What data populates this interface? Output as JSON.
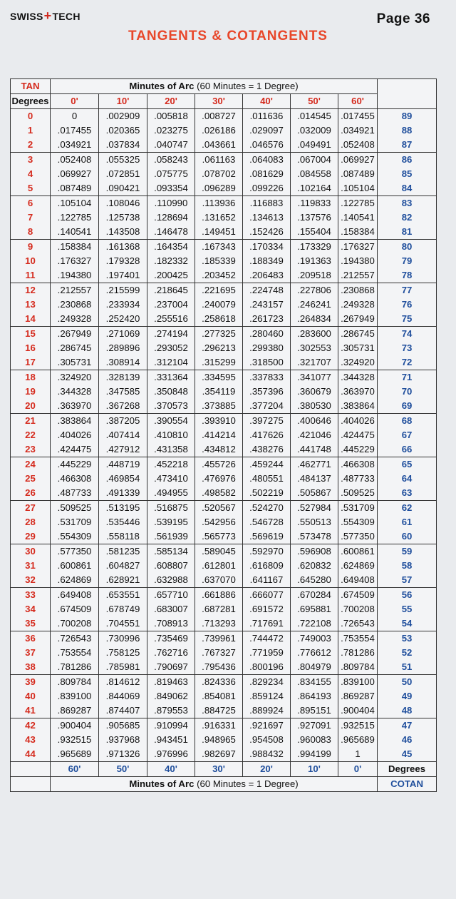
{
  "brand": {
    "left": "SWISS",
    "plus": "+",
    "right": "TECH"
  },
  "page_label": "Page 36",
  "title": "TANGENTS & COTANGENTS",
  "header": {
    "tan_label": "TAN",
    "degrees_label": "Degrees",
    "minutes_bold": "Minutes of Arc",
    "minutes_note": " (60 Minutes = 1 Degree)",
    "top_minutes": [
      "0'",
      "10'",
      "20'",
      "30'",
      "40'",
      "50'",
      "60'"
    ]
  },
  "footer": {
    "bottom_minutes": [
      "60'",
      "50'",
      "40'",
      "30'",
      "20'",
      "10'",
      "0'"
    ],
    "degrees_label": "Degrees",
    "cotan_label": "COTAN",
    "minutes_bold": "Minutes of Arc",
    "minutes_note": " (60 Minutes = 1 Degree)"
  },
  "rows": [
    {
      "deg": "0",
      "vals": [
        "0",
        ".002909",
        ".005818",
        ".008727",
        ".011636",
        ".014545",
        ".017455"
      ],
      "cdeg": "89"
    },
    {
      "deg": "1",
      "vals": [
        ".017455",
        ".020365",
        ".023275",
        ".026186",
        ".029097",
        ".032009",
        ".034921"
      ],
      "cdeg": "88"
    },
    {
      "deg": "2",
      "vals": [
        ".034921",
        ".037834",
        ".040747",
        ".043661",
        ".046576",
        ".049491",
        ".052408"
      ],
      "cdeg": "87"
    },
    {
      "deg": "3",
      "vals": [
        ".052408",
        ".055325",
        ".058243",
        ".061163",
        ".064083",
        ".067004",
        ".069927"
      ],
      "cdeg": "86"
    },
    {
      "deg": "4",
      "vals": [
        ".069927",
        ".072851",
        ".075775",
        ".078702",
        ".081629",
        ".084558",
        ".087489"
      ],
      "cdeg": "85"
    },
    {
      "deg": "5",
      "vals": [
        ".087489",
        ".090421",
        ".093354",
        ".096289",
        ".099226",
        ".102164",
        ".105104"
      ],
      "cdeg": "84"
    },
    {
      "deg": "6",
      "vals": [
        ".105104",
        ".108046",
        ".110990",
        ".113936",
        ".116883",
        ".119833",
        ".122785"
      ],
      "cdeg": "83"
    },
    {
      "deg": "7",
      "vals": [
        ".122785",
        ".125738",
        ".128694",
        ".131652",
        ".134613",
        ".137576",
        ".140541"
      ],
      "cdeg": "82"
    },
    {
      "deg": "8",
      "vals": [
        ".140541",
        ".143508",
        ".146478",
        ".149451",
        ".152426",
        ".155404",
        ".158384"
      ],
      "cdeg": "81"
    },
    {
      "deg": "9",
      "vals": [
        ".158384",
        ".161368",
        ".164354",
        ".167343",
        ".170334",
        ".173329",
        ".176327"
      ],
      "cdeg": "80"
    },
    {
      "deg": "10",
      "vals": [
        ".176327",
        ".179328",
        ".182332",
        ".185339",
        ".188349",
        ".191363",
        ".194380"
      ],
      "cdeg": "79"
    },
    {
      "deg": "11",
      "vals": [
        ".194380",
        ".197401",
        ".200425",
        ".203452",
        ".206483",
        ".209518",
        ".212557"
      ],
      "cdeg": "78"
    },
    {
      "deg": "12",
      "vals": [
        ".212557",
        ".215599",
        ".218645",
        ".221695",
        ".224748",
        ".227806",
        ".230868"
      ],
      "cdeg": "77"
    },
    {
      "deg": "13",
      "vals": [
        ".230868",
        ".233934",
        ".237004",
        ".240079",
        ".243157",
        ".246241",
        ".249328"
      ],
      "cdeg": "76"
    },
    {
      "deg": "14",
      "vals": [
        ".249328",
        ".252420",
        ".255516",
        ".258618",
        ".261723",
        ".264834",
        ".267949"
      ],
      "cdeg": "75"
    },
    {
      "deg": "15",
      "vals": [
        ".267949",
        ".271069",
        ".274194",
        ".277325",
        ".280460",
        ".283600",
        ".286745"
      ],
      "cdeg": "74"
    },
    {
      "deg": "16",
      "vals": [
        ".286745",
        ".289896",
        ".293052",
        ".296213",
        ".299380",
        ".302553",
        ".305731"
      ],
      "cdeg": "73"
    },
    {
      "deg": "17",
      "vals": [
        ".305731",
        ".308914",
        ".312104",
        ".315299",
        ".318500",
        ".321707",
        ".324920"
      ],
      "cdeg": "72"
    },
    {
      "deg": "18",
      "vals": [
        ".324920",
        ".328139",
        ".331364",
        ".334595",
        ".337833",
        ".341077",
        ".344328"
      ],
      "cdeg": "71"
    },
    {
      "deg": "19",
      "vals": [
        ".344328",
        ".347585",
        ".350848",
        ".354119",
        ".357396",
        ".360679",
        ".363970"
      ],
      "cdeg": "70"
    },
    {
      "deg": "20",
      "vals": [
        ".363970",
        ".367268",
        ".370573",
        ".373885",
        ".377204",
        ".380530",
        ".383864"
      ],
      "cdeg": "69"
    },
    {
      "deg": "21",
      "vals": [
        ".383864",
        ".387205",
        ".390554",
        ".393910",
        ".397275",
        ".400646",
        ".404026"
      ],
      "cdeg": "68"
    },
    {
      "deg": "22",
      "vals": [
        ".404026",
        ".407414",
        ".410810",
        ".414214",
        ".417626",
        ".421046",
        ".424475"
      ],
      "cdeg": "67"
    },
    {
      "deg": "23",
      "vals": [
        ".424475",
        ".427912",
        ".431358",
        ".434812",
        ".438276",
        ".441748",
        ".445229"
      ],
      "cdeg": "66"
    },
    {
      "deg": "24",
      "vals": [
        ".445229",
        ".448719",
        ".452218",
        ".455726",
        ".459244",
        ".462771",
        ".466308"
      ],
      "cdeg": "65"
    },
    {
      "deg": "25",
      "vals": [
        ".466308",
        ".469854",
        ".473410",
        ".476976",
        ".480551",
        ".484137",
        ".487733"
      ],
      "cdeg": "64"
    },
    {
      "deg": "26",
      "vals": [
        ".487733",
        ".491339",
        ".494955",
        ".498582",
        ".502219",
        ".505867",
        ".509525"
      ],
      "cdeg": "63"
    },
    {
      "deg": "27",
      "vals": [
        ".509525",
        ".513195",
        ".516875",
        ".520567",
        ".524270",
        ".527984",
        ".531709"
      ],
      "cdeg": "62"
    },
    {
      "deg": "28",
      "vals": [
        ".531709",
        ".535446",
        ".539195",
        ".542956",
        ".546728",
        ".550513",
        ".554309"
      ],
      "cdeg": "61"
    },
    {
      "deg": "29",
      "vals": [
        ".554309",
        ".558118",
        ".561939",
        ".565773",
        ".569619",
        ".573478",
        ".577350"
      ],
      "cdeg": "60"
    },
    {
      "deg": "30",
      "vals": [
        ".577350",
        ".581235",
        ".585134",
        ".589045",
        ".592970",
        ".596908",
        ".600861"
      ],
      "cdeg": "59"
    },
    {
      "deg": "31",
      "vals": [
        ".600861",
        ".604827",
        ".608807",
        ".612801",
        ".616809",
        ".620832",
        ".624869"
      ],
      "cdeg": "58"
    },
    {
      "deg": "32",
      "vals": [
        ".624869",
        ".628921",
        ".632988",
        ".637070",
        ".641167",
        ".645280",
        ".649408"
      ],
      "cdeg": "57"
    },
    {
      "deg": "33",
      "vals": [
        ".649408",
        ".653551",
        ".657710",
        ".661886",
        ".666077",
        ".670284",
        ".674509"
      ],
      "cdeg": "56"
    },
    {
      "deg": "34",
      "vals": [
        ".674509",
        ".678749",
        ".683007",
        ".687281",
        ".691572",
        ".695881",
        ".700208"
      ],
      "cdeg": "55"
    },
    {
      "deg": "35",
      "vals": [
        ".700208",
        ".704551",
        ".708913",
        ".713293",
        ".717691",
        ".722108",
        ".726543"
      ],
      "cdeg": "54"
    },
    {
      "deg": "36",
      "vals": [
        ".726543",
        ".730996",
        ".735469",
        ".739961",
        ".744472",
        ".749003",
        ".753554"
      ],
      "cdeg": "53"
    },
    {
      "deg": "37",
      "vals": [
        ".753554",
        ".758125",
        ".762716",
        ".767327",
        ".771959",
        ".776612",
        ".781286"
      ],
      "cdeg": "52"
    },
    {
      "deg": "38",
      "vals": [
        ".781286",
        ".785981",
        ".790697",
        ".795436",
        ".800196",
        ".804979",
        ".809784"
      ],
      "cdeg": "51"
    },
    {
      "deg": "39",
      "vals": [
        ".809784",
        ".814612",
        ".819463",
        ".824336",
        ".829234",
        ".834155",
        ".839100"
      ],
      "cdeg": "50"
    },
    {
      "deg": "40",
      "vals": [
        ".839100",
        ".844069",
        ".849062",
        ".854081",
        ".859124",
        ".864193",
        ".869287"
      ],
      "cdeg": "49"
    },
    {
      "deg": "41",
      "vals": [
        ".869287",
        ".874407",
        ".879553",
        ".884725",
        ".889924",
        ".895151",
        ".900404"
      ],
      "cdeg": "48"
    },
    {
      "deg": "42",
      "vals": [
        ".900404",
        ".905685",
        ".910994",
        ".916331",
        ".921697",
        ".927091",
        ".932515"
      ],
      "cdeg": "47"
    },
    {
      "deg": "43",
      "vals": [
        ".932515",
        ".937968",
        ".943451",
        ".948965",
        ".954508",
        ".960083",
        ".965689"
      ],
      "cdeg": "46"
    },
    {
      "deg": "44",
      "vals": [
        ".965689",
        ".971326",
        ".976996",
        ".982697",
        ".988432",
        ".994199",
        "1"
      ],
      "cdeg": "45"
    }
  ]
}
